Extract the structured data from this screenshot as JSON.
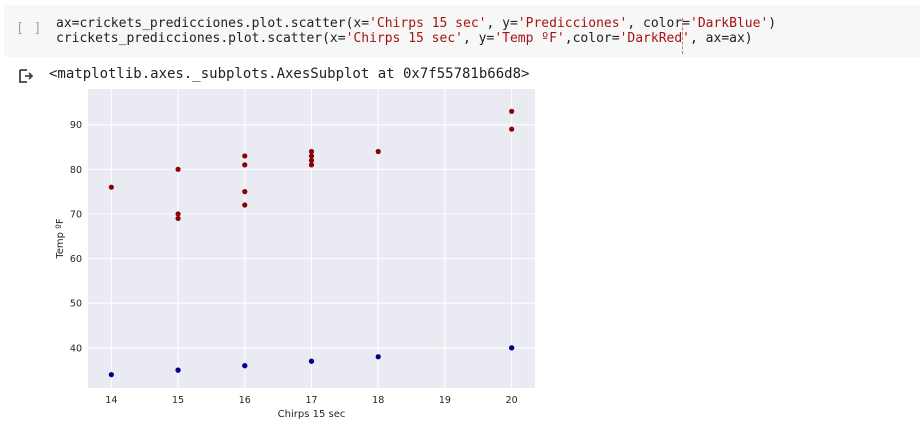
{
  "cell": {
    "run_indicator": "[ ]",
    "code_lines": [
      [
        {
          "t": "ax=crickets_predicciones.plot.scatter(x=",
          "s": false
        },
        {
          "t": "'Chirps 15 sec'",
          "s": true
        },
        {
          "t": ", y=",
          "s": false
        },
        {
          "t": "'Predicciones'",
          "s": true
        },
        {
          "t": ", color=",
          "s": false
        },
        {
          "t": "'DarkBlue'",
          "s": true
        },
        {
          "t": ")",
          "s": false
        }
      ],
      [
        {
          "t": "crickets_predicciones.plot.scatter(x=",
          "s": false
        },
        {
          "t": "'Chirps 15 sec'",
          "s": true
        },
        {
          "t": ", y=",
          "s": false
        },
        {
          "t": "'Temp ºF'",
          "s": true
        },
        {
          "t": ",color=",
          "s": false
        },
        {
          "t": "'DarkRed'",
          "s": true
        },
        {
          "t": ", ax=ax)",
          "s": false
        }
      ]
    ]
  },
  "output": {
    "icon": "output-arrow-icon",
    "text": "<matplotlib.axes._subplots.AxesSubplot at 0x7f55781b66d8>"
  },
  "chart_data": {
    "type": "scatter",
    "xlabel": "Chirps 15 sec",
    "ylabel": "Temp ºF",
    "xlim": [
      13.65,
      20.35
    ],
    "ylim": [
      31,
      98
    ],
    "xticks": [
      14,
      15,
      16,
      17,
      18,
      19,
      20
    ],
    "yticks": [
      40,
      50,
      60,
      70,
      80,
      90
    ],
    "grid": true,
    "background": "#eaeaf2",
    "series": [
      {
        "color": "#00008b",
        "points": [
          [
            14,
            34
          ],
          [
            15,
            35
          ],
          [
            15,
            35
          ],
          [
            16,
            36
          ],
          [
            16,
            36
          ],
          [
            17,
            37
          ],
          [
            17,
            37
          ],
          [
            18,
            38
          ],
          [
            20,
            40
          ],
          [
            20,
            40
          ]
        ]
      },
      {
        "color": "#8b0000",
        "points": [
          [
            14,
            76
          ],
          [
            15,
            80
          ],
          [
            15,
            70
          ],
          [
            15,
            69
          ],
          [
            16,
            83
          ],
          [
            16,
            81
          ],
          [
            16,
            75
          ],
          [
            16,
            72
          ],
          [
            17,
            84
          ],
          [
            17,
            83
          ],
          [
            17,
            82
          ],
          [
            17,
            81
          ],
          [
            18,
            84
          ],
          [
            20,
            93
          ],
          [
            20,
            89
          ]
        ]
      }
    ]
  }
}
